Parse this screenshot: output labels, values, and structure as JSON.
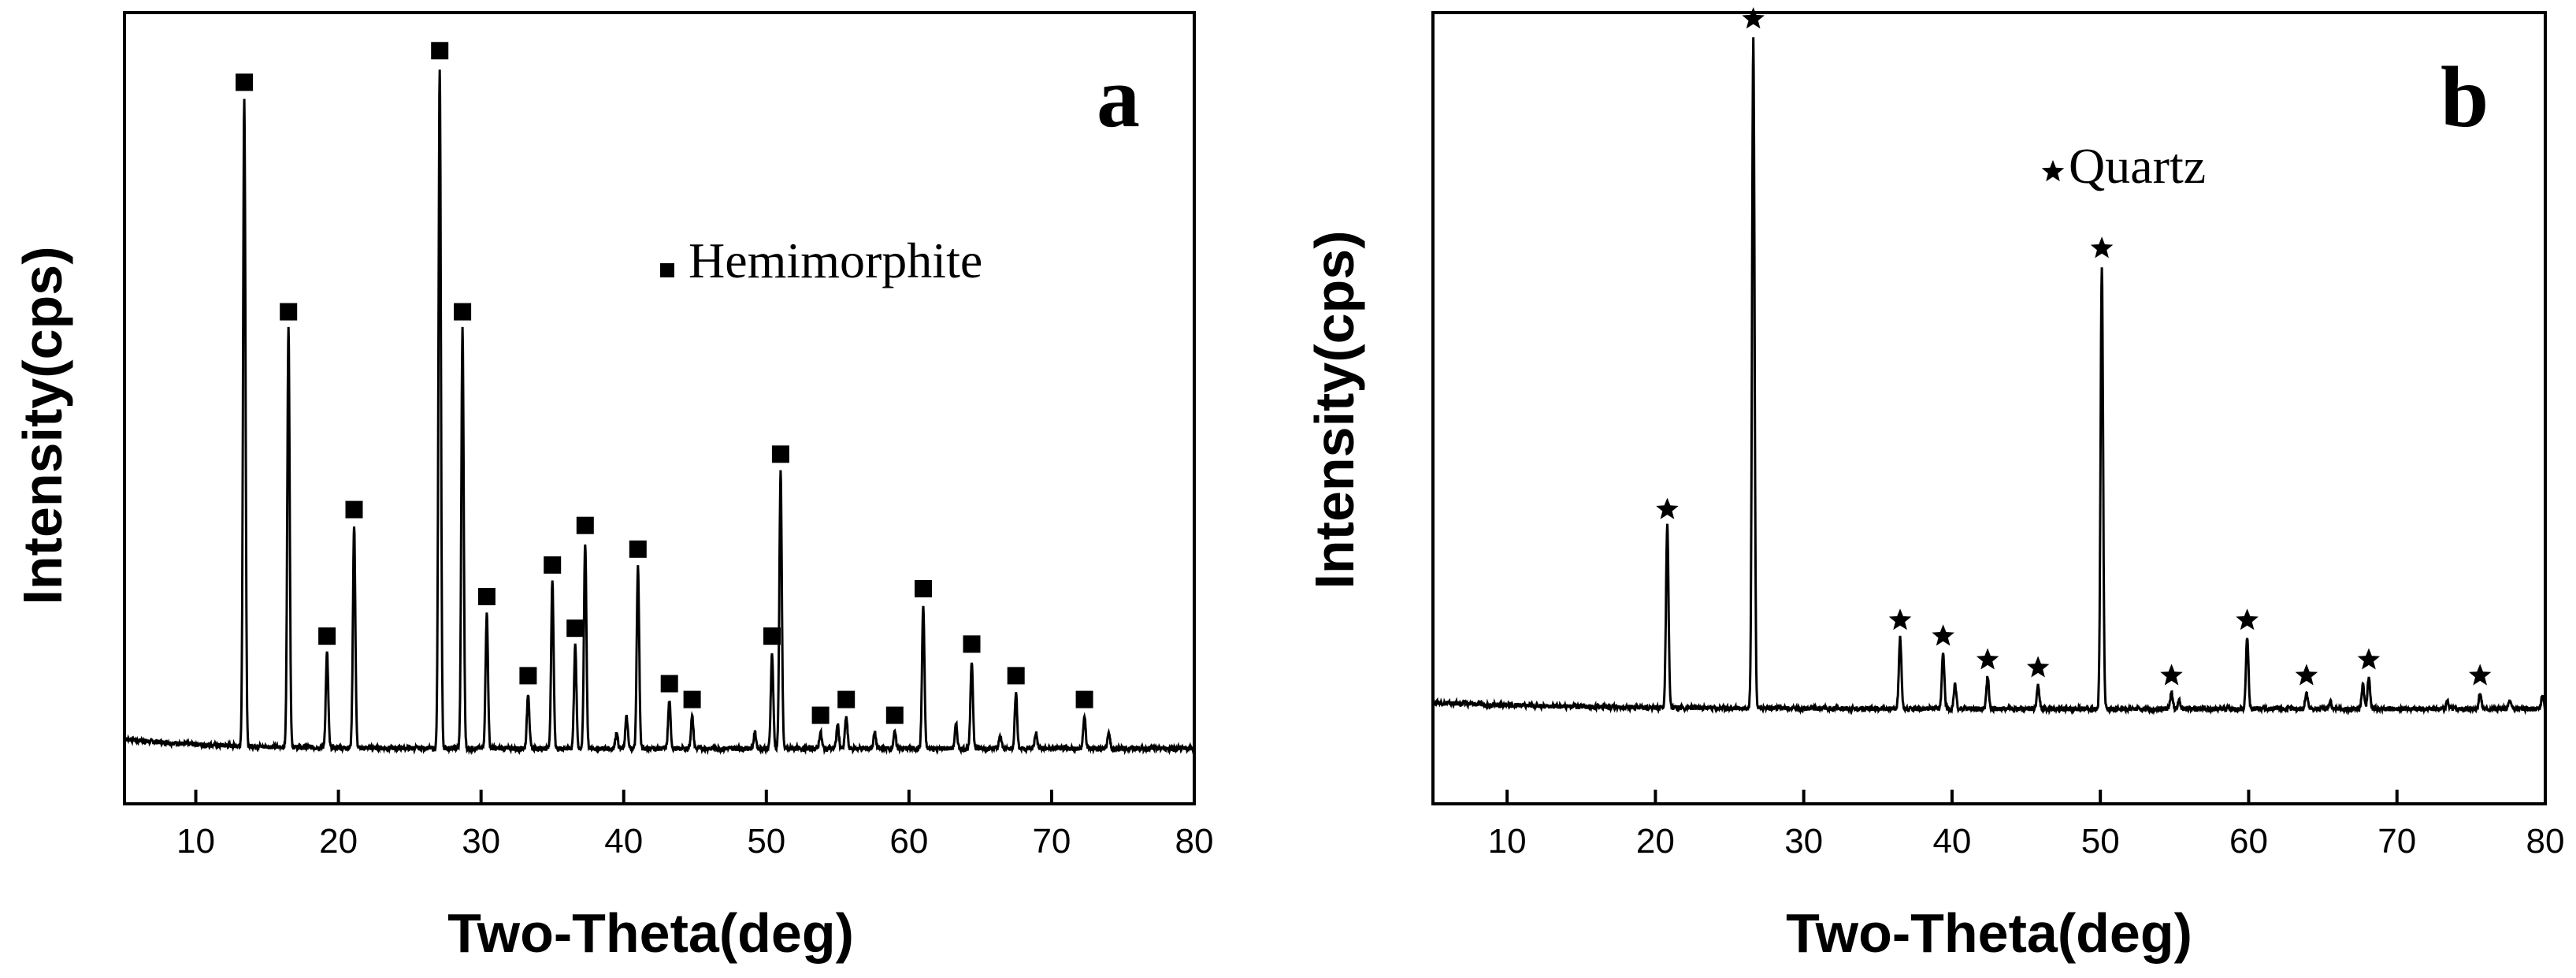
{
  "chart_data": [
    {
      "type": "line",
      "panel_label": "a",
      "title": "",
      "xlabel": "Two-Theta(deg)",
      "ylabel": "Intensity(cps)",
      "xlim": [
        5,
        80
      ],
      "ylim": [
        0,
        100
      ],
      "x_ticks": [
        10,
        20,
        30,
        40,
        50,
        60,
        70,
        80
      ],
      "legend": {
        "label": "Hemimorphite",
        "marker": "square",
        "position": "upper-center"
      },
      "baseline": 7,
      "peaks": [
        {
          "x": 13.4,
          "y": 89,
          "marked": true
        },
        {
          "x": 16.5,
          "y": 60,
          "marked": true
        },
        {
          "x": 19.2,
          "y": 19,
          "marked": true
        },
        {
          "x": 21.1,
          "y": 35,
          "marked": true
        },
        {
          "x": 27.1,
          "y": 93,
          "marked": true
        },
        {
          "x": 28.7,
          "y": 60,
          "marked": true
        },
        {
          "x": 30.4,
          "y": 24,
          "marked": true
        },
        {
          "x": 33.3,
          "y": 14,
          "marked": true
        },
        {
          "x": 35.0,
          "y": 28,
          "marked": true
        },
        {
          "x": 36.6,
          "y": 20,
          "marked": true
        },
        {
          "x": 37.3,
          "y": 33,
          "marked": true
        },
        {
          "x": 41.0,
          "y": 30,
          "marked": true
        },
        {
          "x": 43.2,
          "y": 13,
          "marked": true
        },
        {
          "x": 44.8,
          "y": 11,
          "marked": true
        },
        {
          "x": 50.4,
          "y": 19,
          "marked": true
        },
        {
          "x": 51.0,
          "y": 42,
          "marked": true
        },
        {
          "x": 53.8,
          "y": 9,
          "marked": true
        },
        {
          "x": 55.6,
          "y": 11,
          "marked": true
        },
        {
          "x": 59.0,
          "y": 9,
          "marked": true
        },
        {
          "x": 61.0,
          "y": 25,
          "marked": true
        },
        {
          "x": 64.4,
          "y": 18,
          "marked": true
        },
        {
          "x": 67.5,
          "y": 14,
          "marked": true
        },
        {
          "x": 72.3,
          "y": 11,
          "marked": true
        },
        {
          "x": 39.5,
          "y": 9,
          "marked": false
        },
        {
          "x": 40.2,
          "y": 11,
          "marked": false
        },
        {
          "x": 49.2,
          "y": 9,
          "marked": false
        },
        {
          "x": 55.0,
          "y": 10,
          "marked": false
        },
        {
          "x": 57.6,
          "y": 9,
          "marked": false
        },
        {
          "x": 63.3,
          "y": 10,
          "marked": false
        },
        {
          "x": 66.4,
          "y": 8.5,
          "marked": false
        },
        {
          "x": 68.9,
          "y": 9,
          "marked": false
        },
        {
          "x": 74.0,
          "y": 9,
          "marked": false
        }
      ]
    },
    {
      "type": "line",
      "panel_label": "b",
      "title": "",
      "xlabel": "Two-Theta(deg)",
      "ylabel": "Intensity(cps)",
      "xlim": [
        5,
        80
      ],
      "ylim": [
        0,
        100
      ],
      "x_ticks": [
        10,
        20,
        30,
        40,
        50,
        60,
        70,
        80
      ],
      "legend": {
        "label": "Quartz",
        "marker": "star",
        "position": "upper-center"
      },
      "baseline": 12,
      "peaks": [
        {
          "x": 20.8,
          "y": 35,
          "marked": true
        },
        {
          "x": 26.6,
          "y": 97,
          "marked": true
        },
        {
          "x": 36.5,
          "y": 21,
          "marked": true
        },
        {
          "x": 39.4,
          "y": 19,
          "marked": true
        },
        {
          "x": 42.4,
          "y": 16,
          "marked": true
        },
        {
          "x": 45.8,
          "y": 15,
          "marked": true
        },
        {
          "x": 50.1,
          "y": 68,
          "marked": true
        },
        {
          "x": 54.8,
          "y": 14,
          "marked": true
        },
        {
          "x": 59.9,
          "y": 21,
          "marked": true
        },
        {
          "x": 63.9,
          "y": 14,
          "marked": true
        },
        {
          "x": 68.1,
          "y": 16,
          "marked": true
        },
        {
          "x": 75.6,
          "y": 14,
          "marked": true
        },
        {
          "x": 40.2,
          "y": 15,
          "marked": false
        },
        {
          "x": 55.3,
          "y": 13,
          "marked": false
        },
        {
          "x": 65.5,
          "y": 13,
          "marked": false
        },
        {
          "x": 67.7,
          "y": 15,
          "marked": false
        },
        {
          "x": 73.4,
          "y": 13,
          "marked": false
        },
        {
          "x": 77.6,
          "y": 13,
          "marked": false
        },
        {
          "x": 79.8,
          "y": 13.5,
          "marked": false
        }
      ]
    }
  ]
}
